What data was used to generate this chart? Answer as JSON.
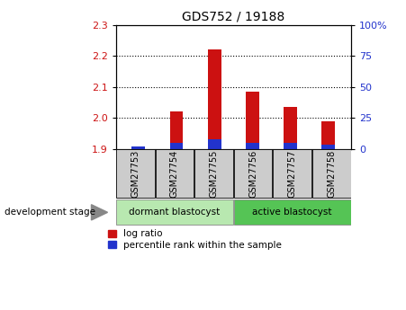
{
  "title": "GDS752 / 19188",
  "samples": [
    "GSM27753",
    "GSM27754",
    "GSM27755",
    "GSM27756",
    "GSM27757",
    "GSM27758"
  ],
  "log_ratio": [
    1.905,
    2.02,
    2.22,
    2.085,
    2.035,
    1.99
  ],
  "percentile_rank": [
    2,
    5,
    8,
    5,
    5,
    3
  ],
  "ylim_left": [
    1.9,
    2.3
  ],
  "ylim_right": [
    0,
    100
  ],
  "yticks_left": [
    1.9,
    2.0,
    2.1,
    2.2,
    2.3
  ],
  "yticks_right": [
    0,
    25,
    50,
    75,
    100
  ],
  "bar_width": 0.35,
  "red_color": "#cc1111",
  "blue_color": "#2233cc",
  "group1_label": "dormant blastocyst",
  "group2_label": "active blastocyst",
  "group1_color": "#b8e8b0",
  "group2_color": "#55c455",
  "xlabel_area_color": "#cccccc",
  "legend_log_ratio": "log ratio",
  "legend_percentile": "percentile rank within the sample",
  "dev_stage_label": "development stage",
  "baseline": 1.9,
  "fig_width": 4.51,
  "fig_height": 3.45,
  "dpi": 100
}
